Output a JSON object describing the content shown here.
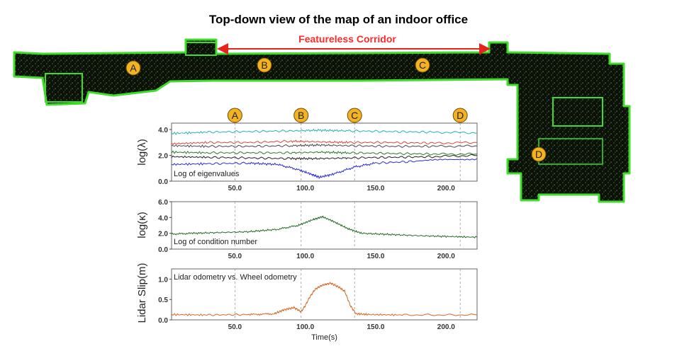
{
  "title": "Top-down view of the map of an indoor office",
  "corridor_label": "Featureless Corridor",
  "map_markers": [
    "A",
    "B",
    "C",
    "C",
    "D"
  ],
  "top_markers": [
    "A",
    "B",
    "C",
    "D"
  ],
  "colors": {
    "marker_fill": "#f4b223",
    "marker_stroke": "#6b4a00",
    "arrow": "#e8231c",
    "map_dark": "#0c1208",
    "map_green": "#3fdc2a",
    "grid": "#999999"
  },
  "chart_data": [
    {
      "type": "line",
      "ylabel": "log(λ)",
      "annotation": "Log of eigenvalues",
      "xlim": [
        5,
        222
      ],
      "ylim": [
        0.0,
        4.5
      ],
      "yticks": [
        "0.0",
        "2.0",
        "4.0"
      ],
      "xticks": [
        "50.0",
        "100.0",
        "150.0",
        "200.0"
      ],
      "event_lines_x": [
        50,
        97,
        135,
        210
      ],
      "series": [
        {
          "color": "#26b3b3",
          "x": [
            5,
            30,
            60,
            90,
            110,
            130,
            160,
            190,
            222
          ],
          "y": [
            3.7,
            3.8,
            3.85,
            3.9,
            3.95,
            3.9,
            3.85,
            3.8,
            3.75
          ]
        },
        {
          "color": "#e0453a",
          "x": [
            5,
            30,
            60,
            90,
            110,
            130,
            160,
            190,
            222
          ],
          "y": [
            2.9,
            3.0,
            3.0,
            3.1,
            3.05,
            3.0,
            3.0,
            2.95,
            3.0
          ]
        },
        {
          "color": "#4a4a4a",
          "x": [
            5,
            30,
            60,
            90,
            110,
            130,
            160,
            190,
            222
          ],
          "y": [
            2.75,
            2.7,
            2.7,
            2.75,
            2.8,
            2.75,
            2.7,
            2.7,
            2.72
          ]
        },
        {
          "color": "#2a7a2a",
          "x": [
            5,
            30,
            60,
            90,
            110,
            130,
            160,
            190,
            222
          ],
          "y": [
            2.25,
            2.2,
            2.2,
            2.2,
            2.25,
            2.2,
            2.15,
            2.1,
            2.1
          ]
        },
        {
          "color": "#222222",
          "x": [
            5,
            30,
            60,
            90,
            110,
            130,
            160,
            190,
            222
          ],
          "y": [
            1.9,
            1.85,
            1.8,
            1.75,
            1.75,
            1.8,
            1.85,
            1.9,
            2.0
          ]
        },
        {
          "color": "#2b2bd8",
          "x": [
            5,
            30,
            60,
            80,
            95,
            105,
            110,
            120,
            135,
            150,
            180,
            222
          ],
          "y": [
            1.3,
            1.35,
            1.4,
            1.3,
            0.9,
            0.5,
            0.3,
            0.55,
            1.1,
            1.4,
            1.55,
            1.75
          ]
        }
      ]
    },
    {
      "type": "line",
      "ylabel": "log(κ)",
      "annotation": "Log of condition number",
      "xlim": [
        5,
        222
      ],
      "ylim": [
        0.0,
        6.0
      ],
      "yticks": [
        "0.0",
        "2.0",
        "4.0",
        "6.0"
      ],
      "xticks": [
        "50.0",
        "100.0",
        "150.0",
        "200.0"
      ],
      "event_lines_x": [
        50,
        97,
        135,
        210
      ],
      "series": [
        {
          "color": "#2a6a2a",
          "x": [
            5,
            20,
            40,
            60,
            80,
            95,
            105,
            112,
            120,
            130,
            140,
            160,
            180,
            200,
            222
          ],
          "y": [
            1.9,
            2.0,
            2.1,
            2.2,
            2.5,
            3.0,
            3.7,
            4.1,
            3.5,
            2.6,
            2.0,
            1.85,
            1.7,
            1.6,
            1.5
          ]
        }
      ]
    },
    {
      "type": "line",
      "ylabel": "Lidar Slip(m)",
      "annotation": "Lidar odometry vs. Wheel odometry",
      "xlabel": "Time(s)",
      "xlim": [
        5,
        222
      ],
      "ylim": [
        0.0,
        1.25
      ],
      "yticks": [
        "0.0",
        "0.5",
        "1.0"
      ],
      "xticks": [
        "50.0",
        "100.0",
        "150.0",
        "200.0"
      ],
      "event_lines_x": [
        50,
        97,
        135,
        210
      ],
      "series": [
        {
          "color": "#d2692c",
          "x": [
            5,
            30,
            60,
            78,
            85,
            92,
            97,
            100,
            103,
            107,
            112,
            118,
            124,
            128,
            132,
            136,
            145,
            170,
            222
          ],
          "y": [
            0.13,
            0.12,
            0.13,
            0.15,
            0.25,
            0.3,
            0.2,
            0.35,
            0.55,
            0.75,
            0.85,
            0.9,
            0.8,
            0.7,
            0.35,
            0.15,
            0.13,
            0.12,
            0.12
          ]
        }
      ]
    }
  ]
}
